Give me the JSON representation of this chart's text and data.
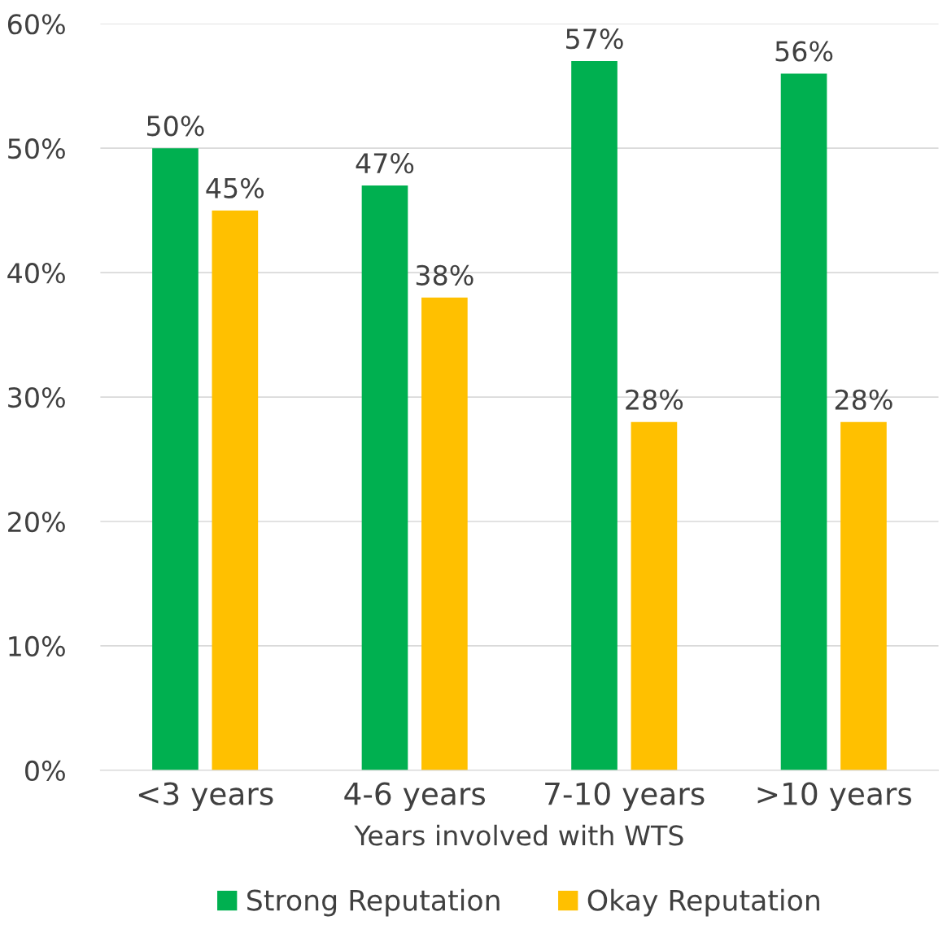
{
  "chart_data": {
    "type": "bar",
    "xlabel": "Years involved with WTS",
    "categories": [
      "<3 years",
      "4-6 years",
      "7-10 years",
      ">10 years"
    ],
    "series": [
      {
        "name": "Strong Reputation",
        "color": "#00b050",
        "values": [
          50,
          47,
          57,
          56
        ],
        "value_labels": [
          "50%",
          "47%",
          "57%",
          "56%"
        ]
      },
      {
        "name": "Okay Reputation",
        "color": "#ffc000",
        "values": [
          45,
          38,
          28,
          28
        ],
        "value_labels": [
          "45%",
          "38%",
          "28%",
          "28%"
        ]
      }
    ],
    "ylim": [
      0,
      60
    ],
    "yticks": [
      {
        "value": 0,
        "label": "0%"
      },
      {
        "value": 10,
        "label": "10%"
      },
      {
        "value": 20,
        "label": "20%"
      },
      {
        "value": 30,
        "label": "30%"
      },
      {
        "value": 40,
        "label": "40%"
      },
      {
        "value": 50,
        "label": "50%"
      },
      {
        "value": 60,
        "label": "60%"
      }
    ],
    "grid": "y",
    "legend": "bottom"
  }
}
